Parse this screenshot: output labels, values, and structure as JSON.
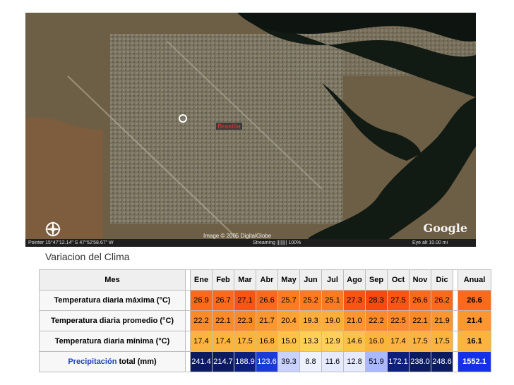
{
  "map": {
    "place_label": "Brasilia",
    "copyright": "Image © 2005 DigitalGlobe",
    "logo": "Google",
    "status": {
      "pointer": "Pointer 15°47'12.14\" S  47°52'58.67\" W",
      "streaming": "Streaming |||||||| 100%",
      "eye_alt": "Eye alt  10.00 mi"
    }
  },
  "section_label": "Variacion del Clima",
  "table": {
    "header": "Mes",
    "months": [
      "Ene",
      "Feb",
      "Mar",
      "Abr",
      "May",
      "Jun",
      "Jul",
      "Ago",
      "Sep",
      "Oct",
      "Nov",
      "Dic"
    ],
    "annual_label": "Anual",
    "rows": [
      {
        "label": "Temperatura diaria máxima (°C)",
        "label_link": "",
        "values": [
          "26.9",
          "26.7",
          "27.1",
          "26.6",
          "25.7",
          "25.2",
          "25.1",
          "27.3",
          "28.3",
          "27.5",
          "26.6",
          "26.2"
        ],
        "annual": "26.6",
        "colors": [
          "#f96a1c",
          "#f96a1c",
          "#f75514",
          "#f96a1c",
          "#fb7b22",
          "#fb7b22",
          "#fb7b22",
          "#f75514",
          "#f44a0e",
          "#f75514",
          "#f96a1c",
          "#f96a1c"
        ],
        "annual_color": "#f96a1c"
      },
      {
        "label": "Temperatura diaria promedio (°C)",
        "label_link": "",
        "values": [
          "22.2",
          "22.1",
          "22.3",
          "21.7",
          "20.4",
          "19.3",
          "19.0",
          "21.0",
          "22.2",
          "22.5",
          "22.1",
          "21.9"
        ],
        "annual": "21.4",
        "colors": [
          "#fb8a2a",
          "#fb8a2a",
          "#fb8a2a",
          "#fc9630",
          "#fca236",
          "#fcae3c",
          "#fcae3c",
          "#fc9630",
          "#fb8a2a",
          "#fb8a2a",
          "#fb8a2a",
          "#fc9630"
        ],
        "annual_color": "#fc9630"
      },
      {
        "label": "Temperatura diaria mínima (°C)",
        "label_link": "",
        "values": [
          "17.4",
          "17.4",
          "17.5",
          "16.8",
          "15.0",
          "13.3",
          "12.9",
          "14.6",
          "16.0",
          "17.4",
          "17.5",
          "17.5"
        ],
        "annual": "16.1",
        "colors": [
          "#fcb43e",
          "#fcb43e",
          "#fcb43e",
          "#fcb43e",
          "#fdc24a",
          "#fdd05a",
          "#fdd05a",
          "#fdc24a",
          "#fcb43e",
          "#fcb43e",
          "#fcb43e",
          "#fcb43e"
        ],
        "annual_color": "#fcb43e"
      },
      {
        "label": "total (mm)",
        "label_link": "Precipitación",
        "values": [
          "241.4",
          "214.7",
          "188.9",
          "123.6",
          "39.3",
          "8.8",
          "11.6",
          "12.8",
          "51.9",
          "172.1",
          "238.0",
          "248.6"
        ],
        "annual": "1552.1",
        "colors": [
          "#0b1b5e",
          "#0b1b5e",
          "#0d1f7a",
          "#1a3bd6",
          "#c9d2ff",
          "#eef1ff",
          "#e6eaff",
          "#e6eaff",
          "#a9b8ff",
          "#0d1f7a",
          "#0b1b5e",
          "#0b1b5e"
        ],
        "annual_color": "#1431e8",
        "text_colors": [
          "#ffffff",
          "#ffffff",
          "#ffffff",
          "#ffffff",
          "#000000",
          "#000000",
          "#000000",
          "#000000",
          "#000000",
          "#ffffff",
          "#ffffff",
          "#ffffff"
        ],
        "annual_text_color": "#ffffff"
      }
    ]
  }
}
